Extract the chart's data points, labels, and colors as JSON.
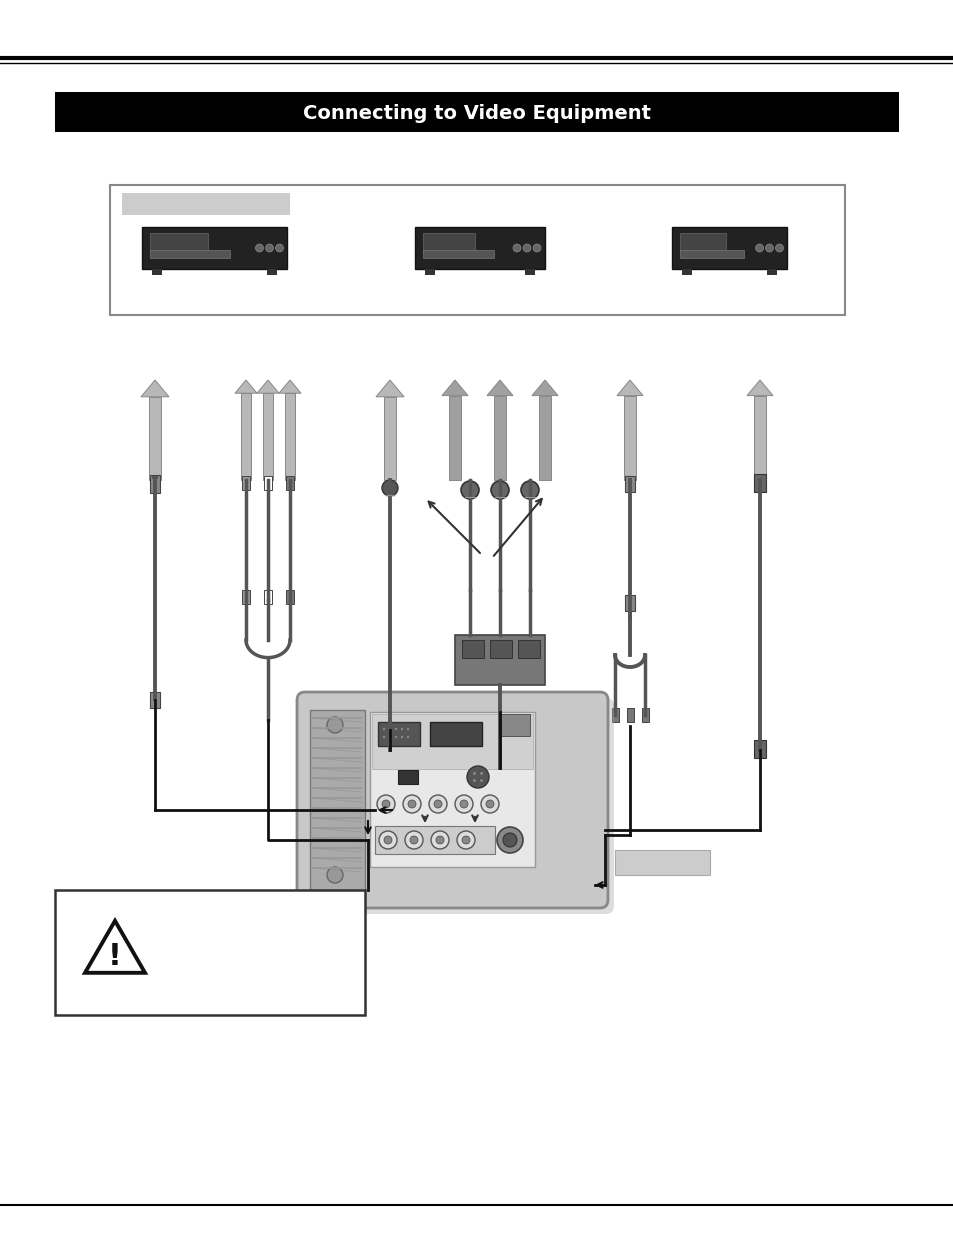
{
  "page_bg": "#ffffff",
  "title_bar_color": "#000000",
  "title_text": "Connecting to Video Equipment",
  "title_text_color": "#ffffff",
  "title_fontsize": 14,
  "line_color": "#000000",
  "arrow_gray": "#b8b8b8",
  "cable_color": "#555555",
  "proj_body_color": "#c0c0c0",
  "proj_panel_color": "#e0e0e0",
  "proj_port_dark": "#444444",
  "vent_color": "#888888",
  "dev_box_gray": "#e0e0e0",
  "label_gray": "#cccccc",
  "caution_gray": "#cccccc",
  "warn_box": "#000000"
}
